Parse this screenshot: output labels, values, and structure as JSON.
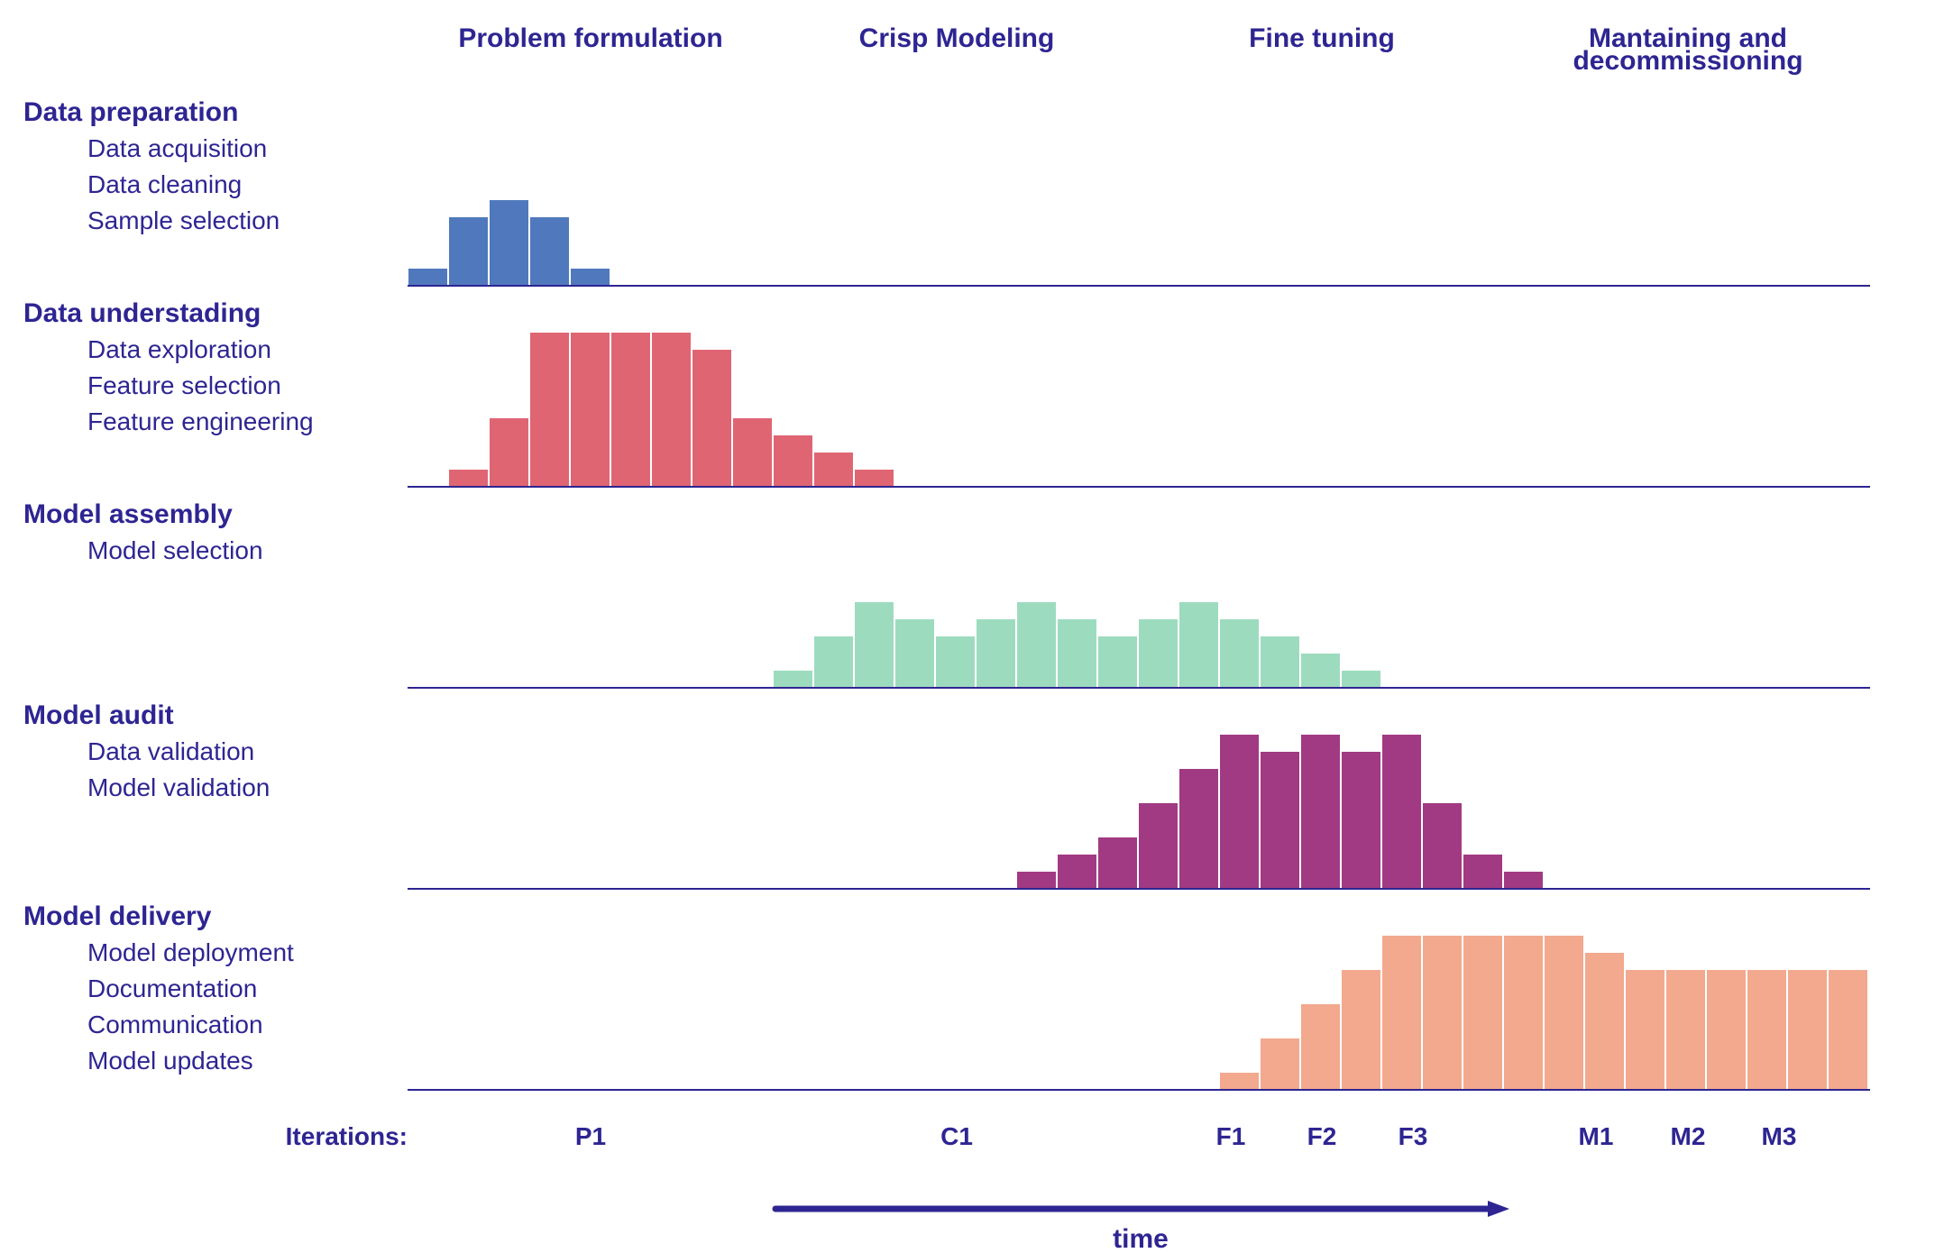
{
  "chart_data": {
    "type": "bar",
    "phases": [
      {
        "label_lines": [
          "Problem formulation"
        ]
      },
      {
        "label_lines": [
          "Crisp Modeling"
        ]
      },
      {
        "label_lines": [
          "Fine tuning"
        ]
      },
      {
        "label_lines": [
          "Mantaining and",
          "decommissioning"
        ]
      }
    ],
    "time_slots": 36,
    "series": [
      {
        "name": "Data preparation",
        "items": [
          "Data acquisition",
          "Data cleaning",
          "Sample selection"
        ],
        "color": "#5079bd",
        "start_slot": 0,
        "values": [
          1,
          4,
          5,
          4,
          1
        ]
      },
      {
        "name": "Data understading",
        "items": [
          "Data exploration",
          "Feature selection",
          "Feature engineering"
        ],
        "color": "#e06573",
        "start_slot": 1,
        "values": [
          1,
          4,
          9,
          9,
          9,
          9,
          8,
          4,
          3,
          2,
          1
        ]
      },
      {
        "name": "Model assembly",
        "items": [
          "Model selection"
        ],
        "color": "#9ddbbf",
        "start_slot": 9,
        "values": [
          1,
          3,
          5,
          4,
          3,
          4,
          5,
          4,
          3,
          4,
          5,
          4,
          3,
          2,
          1
        ]
      },
      {
        "name": "Model audit",
        "items": [
          "Data validation",
          "Model validation"
        ],
        "color": "#a13a83",
        "start_slot": 15,
        "values": [
          1,
          2,
          3,
          5,
          7,
          9,
          8,
          9,
          8,
          9,
          5,
          2,
          1
        ]
      },
      {
        "name": "Model delivery",
        "items": [
          "Model deployment",
          "Documentation",
          "Communication",
          "Model updates"
        ],
        "color": "#f2a98e",
        "start_slot": 20,
        "values": [
          1,
          3,
          5,
          7,
          9,
          9,
          9,
          9,
          9,
          8,
          7,
          7,
          7,
          7,
          7,
          7
        ]
      }
    ],
    "ylim": [
      0,
      10
    ],
    "iterations_label": "Iterations:",
    "iterations": [
      "P1",
      "C1",
      "F1",
      "F2",
      "F3",
      "M1",
      "M2",
      "M3"
    ],
    "time_label": "time",
    "accent_color": "#2e2592"
  }
}
